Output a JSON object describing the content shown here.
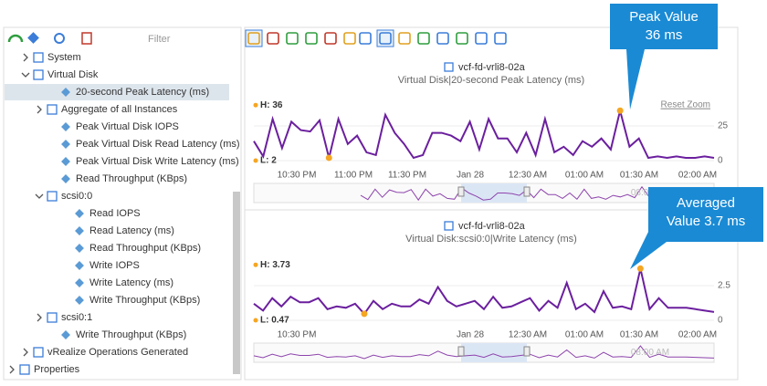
{
  "left_toolbar": {
    "filter_placeholder": "Filter"
  },
  "tree": [
    "System",
    "Virtual Disk",
    "20-second Peak Latency (ms)",
    "Aggregate of all Instances",
    "Peak Virtual Disk IOPS",
    "Peak Virtual Disk Read Latency (ms)",
    "Peak Virtual Disk Write Latency (ms)",
    "Read Throughput (KBps)",
    "scsi0:0",
    "Read IOPS",
    "Read Latency (ms)",
    "Read Throughput (KBps)",
    "Write IOPS",
    "Write Latency (ms)",
    "Write Throughput (KBps)",
    "scsi0:1",
    "Write Throughput (KBps)",
    "vRealize Operations Generated",
    "Properties"
  ],
  "charts": [
    {
      "title": "vcf-fd-vrli8-02a",
      "subtitle": "Virtual Disk|20-second Peak Latency (ms)",
      "high_label": "H: 36",
      "low_label": "L: 2",
      "reset_zoom": "Reset Zoom",
      "color": "#6b1f9e",
      "ylim": [
        0,
        40
      ],
      "yticks": [
        0,
        25
      ],
      "xticks": [
        "10:30 PM",
        "11:00 PM",
        "11:30 PM",
        "Jan 28",
        "12:30 AM",
        "01:00 AM",
        "01:30 AM",
        "02:00 AM"
      ],
      "navigator_label": "08:00 AM",
      "values": [
        14,
        3,
        30,
        9,
        28,
        22,
        21,
        29,
        2,
        30,
        12,
        18,
        6,
        4,
        33,
        20,
        12,
        2,
        4,
        20,
        20,
        18,
        14,
        28,
        8,
        30,
        16,
        16,
        6,
        20,
        4,
        30,
        6,
        10,
        4,
        14,
        10,
        16,
        8,
        36,
        10,
        16,
        2,
        3,
        2,
        3,
        2,
        2,
        3,
        2
      ]
    },
    {
      "title": "vcf-fd-vrli8-02a",
      "subtitle": "Virtual Disk:scsi0:0|Write Latency (ms)",
      "high_label": "H: 3.73",
      "low_label": "L: 0.47",
      "color": "#6b1f9e",
      "ylim": [
        0,
        4
      ],
      "yticks": [
        0,
        2.5
      ],
      "xticks": [
        "10:30 PM",
        "Jan 28",
        "12:30 AM",
        "01:00 AM",
        "01:30 AM",
        "02:00 AM"
      ],
      "navigator_label": "08:00 AM",
      "values": [
        1.2,
        0.7,
        1.6,
        1.0,
        1.7,
        1.3,
        1.3,
        1.6,
        0.8,
        1.0,
        0.9,
        1.2,
        0.47,
        1.4,
        0.8,
        1.2,
        1.0,
        1.0,
        1.5,
        1.2,
        2.4,
        1.4,
        1.0,
        1.2,
        1.4,
        0.8,
        1.7,
        0.9,
        1.0,
        1.3,
        1.6,
        0.7,
        1.4,
        0.9,
        2.7,
        0.8,
        1.2,
        0.6,
        2.1,
        0.9,
        1.0,
        0.8,
        3.73,
        0.8,
        1.6,
        0.9,
        0.9,
        0.9,
        0.8,
        0.7,
        0.6
      ]
    }
  ],
  "callouts": [
    {
      "lines": [
        "Peak Value",
        "36 ms"
      ]
    },
    {
      "lines": [
        "Averaged",
        "Value 3.7 ms"
      ]
    }
  ]
}
